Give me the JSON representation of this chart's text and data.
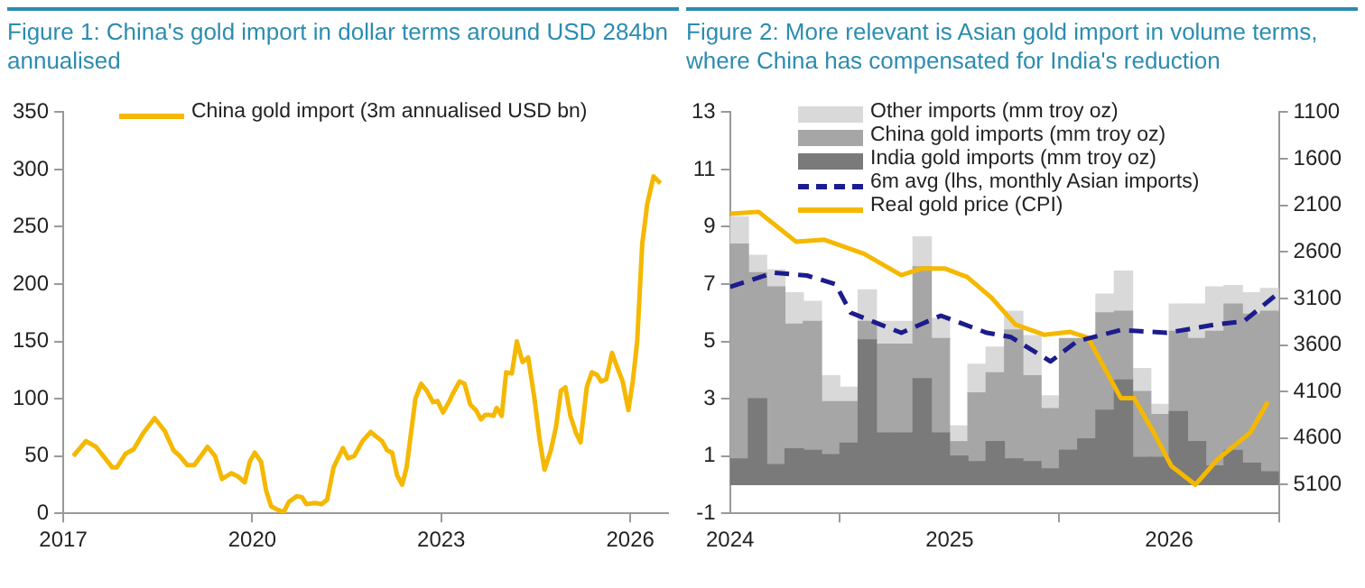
{
  "chart_data": [
    {
      "type": "line",
      "title": "Figure 1: China's gold import in dollar terms around USD 284bn annualised",
      "legend": "top",
      "grid": false,
      "marker": "none",
      "xlim": [
        2017,
        2026.6
      ],
      "xticks": [
        2017,
        2020,
        2023,
        2026
      ],
      "ylim": [
        0,
        350
      ],
      "yticks": [
        0,
        50,
        100,
        150,
        200,
        250,
        300,
        350
      ],
      "series": [
        {
          "name": "China gold import (3m annualised USD bn)",
          "color": "#f5b800",
          "line_style": "solid",
          "x": [
            2017.16,
            2017.36,
            2017.52,
            2017.78,
            2017.85,
            2017.99,
            2018.12,
            2018.27,
            2018.45,
            2018.61,
            2018.75,
            2018.85,
            2018.97,
            2019.08,
            2019.29,
            2019.41,
            2019.52,
            2019.67,
            2019.78,
            2019.88,
            2019.96,
            2020.04,
            2020.14,
            2020.22,
            2020.3,
            2020.41,
            2020.5,
            2020.58,
            2020.71,
            2020.79,
            2020.86,
            2021.0,
            2021.1,
            2021.19,
            2021.29,
            2021.44,
            2021.52,
            2021.62,
            2021.75,
            2021.88,
            2021.99,
            2022.06,
            2022.14,
            2022.22,
            2022.3,
            2022.38,
            2022.45,
            2022.59,
            2022.68,
            2022.77,
            2022.87,
            2022.94,
            2023.03,
            2023.13,
            2023.18,
            2023.29,
            2023.37,
            2023.46,
            2023.55,
            2023.63,
            2023.7,
            2023.75,
            2023.83,
            2023.88,
            2023.96,
            2024.03,
            2024.12,
            2024.2,
            2024.29,
            2024.38,
            2024.48,
            2024.56,
            2024.64,
            2024.74,
            2024.82,
            2024.9,
            2024.97,
            2025.05,
            2025.14,
            2025.21,
            2025.31,
            2025.39,
            2025.47,
            2025.54,
            2025.62,
            2025.71,
            2025.79,
            2025.88,
            2025.97,
            2026.04,
            2026.11,
            2026.19,
            2026.27,
            2026.37,
            2026.48
          ],
          "values": [
            50,
            63,
            58,
            40,
            40,
            52,
            56,
            70,
            83,
            72,
            55,
            50,
            42,
            42,
            58,
            50,
            30,
            35,
            32,
            27,
            45,
            53,
            45,
            20,
            6,
            3,
            1,
            10,
            15,
            14,
            8,
            9,
            8,
            12,
            40,
            57,
            48,
            50,
            63,
            71,
            66,
            63,
            55,
            53,
            33,
            25,
            40,
            100,
            113,
            107,
            97,
            98,
            88,
            98,
            104,
            115,
            113,
            95,
            90,
            82,
            86,
            86,
            85,
            92,
            85,
            123,
            122,
            150,
            132,
            136,
            100,
            65,
            38,
            55,
            75,
            107,
            110,
            85,
            70,
            62,
            110,
            123,
            121,
            115,
            117,
            140,
            128,
            115,
            90,
            115,
            150,
            235,
            270,
            294,
            288
          ]
        }
      ]
    },
    {
      "type": "bar",
      "title": "Figure 2: More relevant is Asian gold import in volume terms, where China has compensated for India's reduction",
      "legend": "top",
      "grid": false,
      "stacked": true,
      "xlim": [
        2024,
        2026.5
      ],
      "xticks": [
        2024,
        2025,
        2026
      ],
      "ylim": [
        -1,
        13
      ],
      "yticks": [
        -1,
        1,
        3,
        5,
        7,
        9,
        11,
        13
      ],
      "y2lim": [
        5408,
        1100
      ],
      "y2ticks": [
        1100,
        1600,
        2100,
        2600,
        3100,
        3600,
        4100,
        4600,
        5100
      ],
      "x": [
        2024.042,
        2024.125,
        2024.208,
        2024.292,
        2024.375,
        2024.458,
        2024.542,
        2024.625,
        2024.708,
        2024.792,
        2024.875,
        2024.958,
        2025.042,
        2025.125,
        2025.208,
        2025.292,
        2025.375,
        2025.458,
        2025.542,
        2025.625,
        2025.708,
        2025.792,
        2025.875,
        2025.958,
        2026.042,
        2026.125,
        2026.208,
        2026.292,
        2026.375,
        2026.458
      ],
      "series": [
        {
          "name": "India gold imports (mm troy oz)",
          "type": "bar",
          "color": "#7a7a7a",
          "values": [
            0.9,
            3.0,
            0.7,
            1.25,
            1.2,
            1.05,
            1.45,
            5.05,
            1.8,
            1.8,
            3.7,
            1.8,
            1.0,
            0.8,
            1.5,
            0.9,
            0.8,
            0.55,
            1.2,
            1.6,
            2.6,
            3.65,
            0.95,
            0.95,
            2.55,
            1.5,
            0.65,
            1.2,
            0.75,
            0.45
          ]
        },
        {
          "name": "China gold imports (mm troy oz)",
          "type": "bar",
          "color": "#a6a6a6",
          "values": [
            7.5,
            4.4,
            6.2,
            4.35,
            4.5,
            1.85,
            1.45,
            0.65,
            3.1,
            3.1,
            3.9,
            3.3,
            0.5,
            2.4,
            2.4,
            4.5,
            3.0,
            2.1,
            3.9,
            3.5,
            3.4,
            2.4,
            2.3,
            1.5,
            2.8,
            3.6,
            4.7,
            5.1,
            5.2,
            5.6
          ]
        },
        {
          "name": "Other imports (mm troy oz)",
          "type": "bar",
          "color": "#d9d9d9",
          "values": [
            0.95,
            0.6,
            0.6,
            1.1,
            0.7,
            0.9,
            0.5,
            1.1,
            0.8,
            0.8,
            1.05,
            0.7,
            0.55,
            1.0,
            0.9,
            0.65,
            1.4,
            0.45,
            null,
            null,
            0.65,
            1.4,
            0.8,
            0.35,
            0.95,
            1.2,
            1.55,
            0.65,
            0.75,
            0.8
          ]
        },
        {
          "name": "6m avg (lhs, monthly Asian imports)",
          "type": "line",
          "color": "#1c1c8c",
          "line_style": "dashed",
          "marker": "none",
          "x": [
            2024.0,
            2024.2,
            2024.35,
            2024.48,
            2024.55,
            2024.78,
            2024.96,
            2025.17,
            2025.28,
            2025.46,
            2025.58,
            2025.78,
            2025.99,
            2026.22,
            2026.34,
            2026.5
          ],
          "values": [
            6.9,
            7.4,
            7.3,
            7.0,
            6.0,
            5.3,
            5.9,
            5.3,
            5.15,
            4.3,
            5.0,
            5.4,
            5.3,
            5.6,
            5.7,
            6.7
          ]
        },
        {
          "name": "Real gold price (CPI)",
          "type": "line",
          "axis": "y2",
          "color": "#f5b800",
          "line_style": "solid",
          "marker": "none",
          "x": [
            2024.0,
            2024.13,
            2024.3,
            2024.43,
            2024.61,
            2024.78,
            2024.87,
            2024.98,
            2025.08,
            2025.19,
            2025.3,
            2025.43,
            2025.55,
            2025.63,
            2025.78,
            2025.84,
            2025.93,
            2026.01,
            2026.12,
            2026.22,
            2026.37,
            2026.45
          ],
          "values": [
            2190,
            2170,
            2490,
            2470,
            2620,
            2850,
            2780,
            2780,
            2870,
            3090,
            3380,
            3490,
            3460,
            3520,
            4170,
            4170,
            4540,
            4900,
            5100,
            4830,
            4540,
            4210
          ]
        }
      ]
    }
  ]
}
